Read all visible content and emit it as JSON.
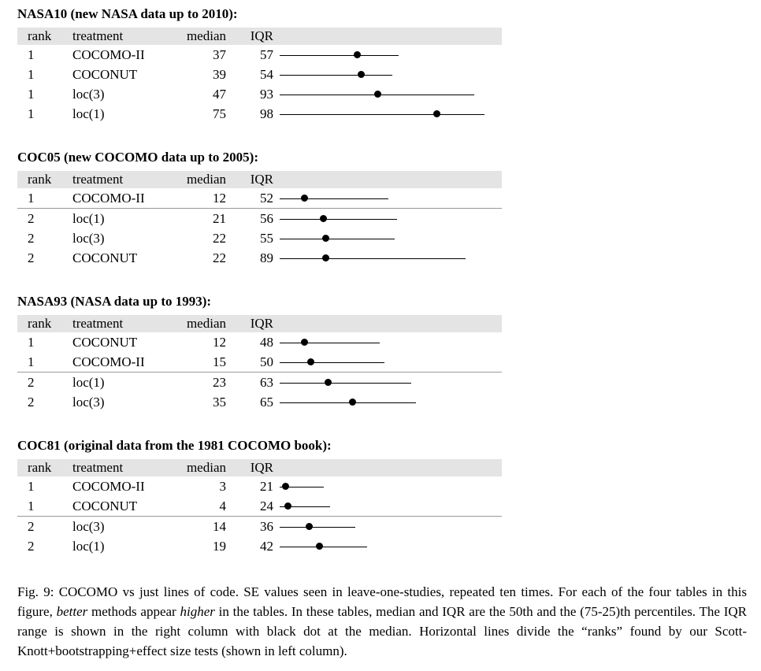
{
  "figure": {
    "columns": {
      "rank": "rank",
      "treatment": "treatment",
      "median": "median",
      "iqr": "IQR"
    },
    "tables": [
      {
        "title": "NASA10 (new NASA data up to 2010):",
        "rank_groups": [
          {
            "rows": [
              {
                "rank": "1",
                "treatment": "COCOMO-II",
                "median": 37,
                "iqr": 57
              },
              {
                "rank": "1",
                "treatment": "COCONUT",
                "median": 39,
                "iqr": 54
              },
              {
                "rank": "1",
                "treatment": "loc(3)",
                "median": 47,
                "iqr": 93
              },
              {
                "rank": "1",
                "treatment": "loc(1)",
                "median": 75,
                "iqr": 98
              }
            ]
          }
        ]
      },
      {
        "title": "COC05 (new COCOMO data up to 2005):",
        "rank_groups": [
          {
            "rows": [
              {
                "rank": "1",
                "treatment": "COCOMO-II",
                "median": 12,
                "iqr": 52
              }
            ]
          },
          {
            "rows": [
              {
                "rank": "2",
                "treatment": "loc(1)",
                "median": 21,
                "iqr": 56
              },
              {
                "rank": "2",
                "treatment": "loc(3)",
                "median": 22,
                "iqr": 55
              },
              {
                "rank": "2",
                "treatment": "COCONUT",
                "median": 22,
                "iqr": 89
              }
            ]
          }
        ]
      },
      {
        "title": "NASA93 (NASA data up to 1993):",
        "rank_groups": [
          {
            "rows": [
              {
                "rank": "1",
                "treatment": "COCONUT",
                "median": 12,
                "iqr": 48
              },
              {
                "rank": "1",
                "treatment": "COCOMO-II",
                "median": 15,
                "iqr": 50
              }
            ]
          },
          {
            "rows": [
              {
                "rank": "2",
                "treatment": "loc(1)",
                "median": 23,
                "iqr": 63
              },
              {
                "rank": "2",
                "treatment": "loc(3)",
                "median": 35,
                "iqr": 65
              }
            ]
          }
        ]
      },
      {
        "title": "COC81 (original data from the 1981 COCOMO book):",
        "rank_groups": [
          {
            "rows": [
              {
                "rank": "1",
                "treatment": "COCOMO-II",
                "median": 3,
                "iqr": 21
              },
              {
                "rank": "1",
                "treatment": "COCONUT",
                "median": 4,
                "iqr": 24
              }
            ]
          },
          {
            "rows": [
              {
                "rank": "2",
                "treatment": "loc(3)",
                "median": 14,
                "iqr": 36
              },
              {
                "rank": "2",
                "treatment": "loc(1)",
                "median": 19,
                "iqr": 42
              }
            ]
          }
        ]
      }
    ],
    "plot": {
      "value_min": 0,
      "value_max": 110,
      "dot_at": "median",
      "line_span": "IQR range"
    },
    "caption_segments": [
      {
        "text": "Fig. 9: COCOMO vs just lines of code. SE values seen in leave-one-studies, repeated ten times. For each of the four tables in this figure, ",
        "italic": false
      },
      {
        "text": "better",
        "italic": true
      },
      {
        "text": " methods appear ",
        "italic": false
      },
      {
        "text": "higher",
        "italic": true
      },
      {
        "text": " in the tables. In these tables, median and IQR are the 50th and the (75-25)th percentiles. The IQR range is shown in the right column with black dot at the median. Horizontal lines divide the “ranks” found by our Scott-Knott+bootstrapping+effect size tests (shown in left column).",
        "italic": false
      }
    ]
  }
}
